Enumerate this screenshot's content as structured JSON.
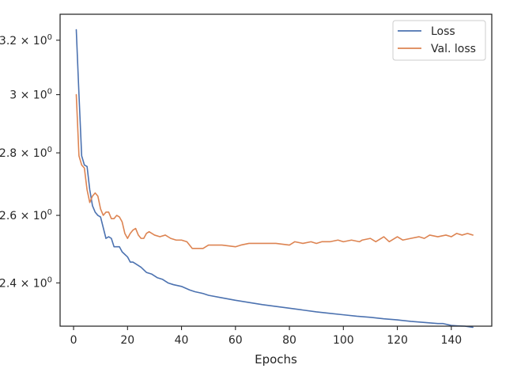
{
  "chart_data": {
    "type": "line",
    "title": "",
    "xlabel": "Epochs",
    "ylabel": "",
    "xlim": [
      -5,
      155
    ],
    "ylim": [
      2.28,
      3.3
    ],
    "y_scale": "log",
    "grid": false,
    "legend_position": "top-right",
    "x_ticks": [
      0,
      20,
      40,
      60,
      80,
      100,
      120,
      140
    ],
    "x_tick_labels": [
      "0",
      "20",
      "40",
      "60",
      "80",
      "100",
      "120",
      "140"
    ],
    "y_ticks": [
      2.4,
      2.6,
      2.8,
      3.0,
      3.2
    ],
    "y_tick_labels": [
      {
        "mantissa": "2.4",
        "times": " × ",
        "base": "10",
        "exp": "0"
      },
      {
        "mantissa": "2.6",
        "times": " × ",
        "base": "10",
        "exp": "0"
      },
      {
        "mantissa": "2.8",
        "times": " × ",
        "base": "10",
        "exp": "0"
      },
      {
        "mantissa": "3",
        "times": " × ",
        "base": "10",
        "exp": "0"
      },
      {
        "mantissa": "3.2",
        "times": " × ",
        "base": "10",
        "exp": "0"
      }
    ],
    "series": [
      {
        "name": "Loss",
        "color": "#4c72b0",
        "x": [
          1,
          2,
          3,
          4,
          5,
          6,
          7,
          8,
          9,
          10,
          12,
          13,
          14,
          15,
          17,
          18,
          20,
          21,
          22,
          23,
          25,
          27,
          29,
          31,
          33,
          35,
          37,
          40,
          43,
          45,
          48,
          50,
          55,
          60,
          65,
          70,
          75,
          80,
          85,
          90,
          95,
          100,
          105,
          110,
          115,
          120,
          125,
          130,
          135,
          137,
          140,
          142,
          145,
          148
        ],
        "y": [
          3.24,
          3.0,
          2.79,
          2.76,
          2.755,
          2.68,
          2.63,
          2.61,
          2.6,
          2.595,
          2.53,
          2.535,
          2.53,
          2.505,
          2.505,
          2.49,
          2.475,
          2.46,
          2.46,
          2.455,
          2.445,
          2.43,
          2.425,
          2.415,
          2.41,
          2.4,
          2.395,
          2.39,
          2.38,
          2.375,
          2.37,
          2.365,
          2.358,
          2.351,
          2.345,
          2.339,
          2.334,
          2.329,
          2.324,
          2.319,
          2.315,
          2.311,
          2.307,
          2.304,
          2.3,
          2.297,
          2.293,
          2.29,
          2.287,
          2.287,
          2.282,
          2.281,
          2.28,
          2.277
        ]
      },
      {
        "name": "Val. loss",
        "color": "#dd8452",
        "x": [
          1,
          2,
          3,
          4,
          5,
          6,
          7,
          8,
          9,
          10,
          11,
          12,
          13,
          14,
          15,
          16,
          17,
          18,
          19,
          20,
          21,
          22,
          23,
          24,
          25,
          26,
          27,
          28,
          30,
          32,
          34,
          36,
          38,
          40,
          42,
          44,
          46,
          48,
          50,
          55,
          60,
          62,
          65,
          70,
          75,
          80,
          82,
          85,
          88,
          90,
          92,
          95,
          98,
          100,
          103,
          106,
          107,
          110,
          112,
          115,
          117,
          120,
          122,
          125,
          128,
          130,
          132,
          135,
          138,
          140,
          142,
          144,
          146,
          148
        ],
        "y": [
          3.0,
          2.79,
          2.76,
          2.75,
          2.68,
          2.64,
          2.66,
          2.67,
          2.66,
          2.62,
          2.6,
          2.61,
          2.61,
          2.59,
          2.59,
          2.6,
          2.595,
          2.58,
          2.545,
          2.53,
          2.545,
          2.555,
          2.56,
          2.54,
          2.53,
          2.53,
          2.545,
          2.55,
          2.54,
          2.535,
          2.54,
          2.53,
          2.525,
          2.525,
          2.52,
          2.5,
          2.5,
          2.5,
          2.51,
          2.51,
          2.505,
          2.51,
          2.515,
          2.515,
          2.515,
          2.51,
          2.52,
          2.515,
          2.52,
          2.515,
          2.52,
          2.52,
          2.525,
          2.52,
          2.525,
          2.52,
          2.525,
          2.53,
          2.52,
          2.535,
          2.52,
          2.535,
          2.525,
          2.53,
          2.535,
          2.53,
          2.54,
          2.535,
          2.54,
          2.535,
          2.545,
          2.54,
          2.545,
          2.54
        ]
      }
    ]
  }
}
